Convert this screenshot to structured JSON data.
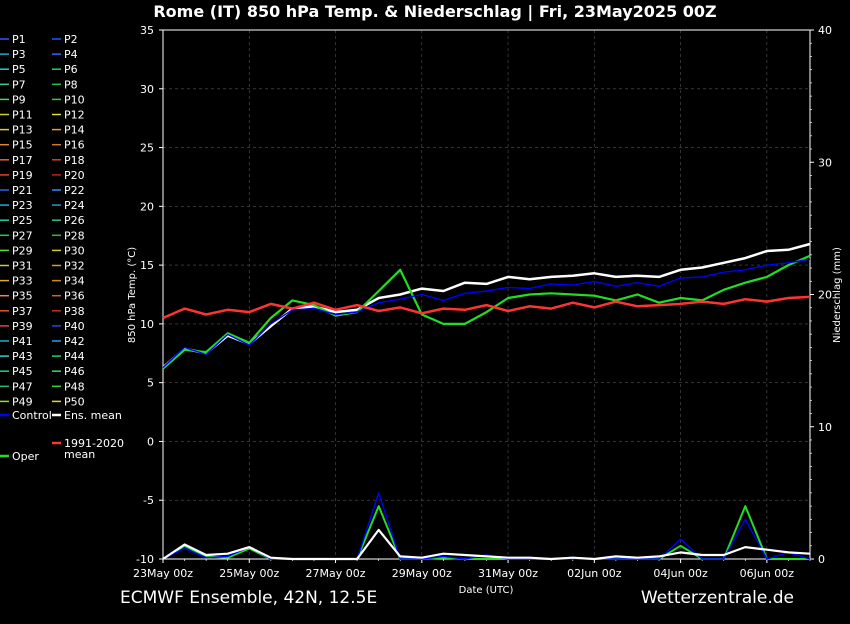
{
  "title": "Rome  (IT)  850 hPa Temp. & Niederschlag | Fri, 23May2025 00Z",
  "footer": {
    "left": "ECMWF Ensemble, 42N, 12.5E",
    "right": "Wetterzentrale.de"
  },
  "colors": {
    "background": "#000000",
    "control": "#0000ff",
    "ens_mean": "#ffffff",
    "climate": "#ff3333",
    "oper": "#22dd22",
    "grid": "#555555"
  },
  "chart_data": {
    "type": "line",
    "title": "Rome  (IT)  850 hPa Temp. & Niederschlag | Fri, 23May2025 00Z",
    "xlabel": "Date (UTC)",
    "ylabel": "850 hPa Temp. (°C)",
    "ylabel_right": "Niederschlag (mm)",
    "ylim": [
      -10,
      35
    ],
    "ylim_right": [
      0,
      40
    ],
    "y_ticks": [
      -10,
      -5,
      0,
      5,
      10,
      15,
      20,
      25,
      30,
      35
    ],
    "y_ticks_right": [
      0,
      10,
      20,
      30,
      40
    ],
    "x_tick_labels": [
      "23May 00z",
      "25May 00z",
      "27May 00z",
      "29May 00z",
      "31May 00z",
      "02Jun 00z",
      "04Jun 00z",
      "06Jun 00z"
    ],
    "x_days": [
      0,
      15
    ],
    "grid": true,
    "legend_placement": "left",
    "legend_members": [
      "P1",
      "P2",
      "P3",
      "P4",
      "P5",
      "P6",
      "P7",
      "P8",
      "P9",
      "P10",
      "P11",
      "P12",
      "P13",
      "P14",
      "P15",
      "P16",
      "P17",
      "P18",
      "P19",
      "P20",
      "P21",
      "P22",
      "P23",
      "P24",
      "P25",
      "P26",
      "P27",
      "P28",
      "P29",
      "P30",
      "P31",
      "P32",
      "P33",
      "P34",
      "P35",
      "P36",
      "P37",
      "P38",
      "P39",
      "P40",
      "P41",
      "P42",
      "P43",
      "P44",
      "P45",
      "P46",
      "P47",
      "P48",
      "P49",
      "P50"
    ],
    "member_colors": [
      "#3355ff",
      "#2255ee",
      "#22aacc",
      "#3366ff",
      "#22cccc",
      "#22cc66",
      "#33cc99",
      "#22bb44",
      "#44dd44",
      "#33cc33",
      "#cccc33",
      "#dddd33",
      "#ddcc33",
      "#ee9933",
      "#dd8833",
      "#cc7733",
      "#dd6633",
      "#cc4422",
      "#dd4433",
      "#bb2222",
      "#2266ee",
      "#3388ff",
      "#22aadd",
      "#2299cc",
      "#22ccaa",
      "#33bb88",
      "#22cc55",
      "#33bb33",
      "#66dd33",
      "#cccc22",
      "#cccc33",
      "#dd9933",
      "#ddaa33",
      "#cc8822",
      "#ee8844",
      "#cc6622",
      "#dd5533",
      "#bb3322",
      "#dd4444",
      "#2244ee",
      "#22aacc",
      "#3399ee",
      "#33cccc",
      "#22cc77",
      "#22cc99",
      "#33dd55",
      "#22bb66",
      "#33cc44",
      "#99dd33",
      "#dddd22"
    ],
    "special_legend": [
      {
        "name": "Control",
        "color": "#0000ff"
      },
      {
        "name": "Ens. mean",
        "color": "#ffffff"
      },
      {
        "name": "1991-2020 mean",
        "color": "#ff3333"
      },
      {
        "name": "Oper",
        "color": "#22dd22"
      }
    ],
    "series": [
      {
        "name": "Ens. mean",
        "x": [
          0,
          0.5,
          1,
          1.5,
          2,
          2.5,
          3,
          3.5,
          4,
          4.5,
          5,
          5.5,
          6,
          6.5,
          7,
          7.5,
          8,
          8.5,
          9,
          9.5,
          10,
          10.5,
          11,
          11.5,
          12,
          12.5,
          13,
          13.5,
          14,
          14.5,
          15
        ],
        "values": [
          6.3,
          7.9,
          7.5,
          9.0,
          8.3,
          9.8,
          11.3,
          11.5,
          11.0,
          11.2,
          12.2,
          12.5,
          13.0,
          12.8,
          13.5,
          13.4,
          14.0,
          13.8,
          14.0,
          14.1,
          14.3,
          14.0,
          14.1,
          14.0,
          14.6,
          14.8,
          15.2,
          15.6,
          16.2,
          16.3,
          16.8
        ]
      },
      {
        "name": "Oper",
        "x": [
          0,
          0.5,
          1,
          1.5,
          2,
          2.5,
          3,
          3.5,
          4,
          4.5,
          5,
          5.5,
          6,
          6.5,
          7,
          7.5,
          8,
          8.5,
          9,
          9.5,
          10,
          10.5,
          11,
          11.5,
          12,
          12.5,
          13,
          13.5,
          14,
          14.5,
          15
        ],
        "values": [
          6.2,
          7.8,
          7.6,
          9.2,
          8.4,
          10.5,
          12.0,
          11.6,
          10.7,
          11.0,
          12.8,
          14.6,
          10.8,
          10.0,
          10.0,
          11.0,
          12.2,
          12.5,
          12.6,
          12.5,
          12.4,
          12.0,
          12.5,
          11.8,
          12.2,
          12.0,
          12.9,
          13.5,
          14.0,
          15.0,
          15.8
        ]
      },
      {
        "name": "Control",
        "x": [
          0,
          0.5,
          1,
          1.5,
          2,
          2.5,
          3,
          3.5,
          4,
          4.5,
          5,
          5.5,
          6,
          6.5,
          7,
          7.5,
          8,
          8.5,
          9,
          9.5,
          10,
          10.5,
          11,
          11.5,
          12,
          12.5,
          13,
          13.5,
          14,
          14.5,
          15
        ],
        "values": [
          6.3,
          8.0,
          7.4,
          9.1,
          8.2,
          10.0,
          11.2,
          11.3,
          10.8,
          11.0,
          11.8,
          12.1,
          12.5,
          12.0,
          12.6,
          12.8,
          13.1,
          13.0,
          13.4,
          13.3,
          13.6,
          13.2,
          13.5,
          13.2,
          13.9,
          14.0,
          14.4,
          14.6,
          15.0,
          15.2,
          15.5
        ]
      },
      {
        "name": "1991-2020 mean",
        "x": [
          0,
          0.5,
          1,
          1.5,
          2,
          2.5,
          3,
          3.5,
          4,
          4.5,
          5,
          5.5,
          6,
          6.5,
          7,
          7.5,
          8,
          8.5,
          9,
          9.5,
          10,
          10.5,
          11,
          11.5,
          12,
          12.5,
          13,
          13.5,
          14,
          14.5,
          15
        ],
        "values": [
          10.5,
          11.3,
          10.8,
          11.2,
          11.0,
          11.7,
          11.3,
          11.8,
          11.2,
          11.6,
          11.1,
          11.4,
          10.9,
          11.3,
          11.2,
          11.6,
          11.1,
          11.5,
          11.3,
          11.8,
          11.4,
          11.9,
          11.5,
          11.6,
          11.7,
          11.9,
          11.7,
          12.1,
          11.9,
          12.2,
          12.3
        ]
      },
      {
        "name": "Oper precipitation (mm)",
        "x": [
          0,
          0.5,
          1,
          1.5,
          2,
          2.5,
          3,
          3.5,
          4,
          4.5,
          5,
          5.5,
          6,
          6.5,
          7,
          7.5,
          8,
          8.5,
          9,
          9.5,
          10,
          10.5,
          11,
          11.5,
          12,
          12.5,
          13,
          13.5,
          14,
          14.5,
          15
        ],
        "values": [
          0,
          1,
          0.2,
          0.1,
          0.8,
          0,
          0,
          0,
          0,
          0,
          4,
          0,
          0,
          0.1,
          0,
          0,
          0,
          0,
          0,
          0.1,
          0,
          0,
          0,
          0,
          1,
          0,
          0,
          4,
          0,
          0,
          0
        ]
      },
      {
        "name": "Control precipitation (mm)",
        "x": [
          0,
          0.5,
          1,
          1.5,
          2,
          2.5,
          3,
          3.5,
          4,
          4.5,
          5,
          5.5,
          6,
          6.5,
          7,
          7.5,
          8,
          8.5,
          9,
          9.5,
          10,
          10.5,
          11,
          11.5,
          12,
          12.5,
          13,
          13.5,
          14,
          14.5,
          15
        ],
        "values": [
          0,
          0.8,
          0.1,
          0.2,
          0.9,
          0,
          0,
          0,
          0,
          0,
          5,
          0,
          0,
          0.2,
          0,
          0.3,
          0,
          0,
          0,
          0,
          0,
          0,
          0,
          0,
          1.5,
          0,
          0,
          3,
          0,
          0.5,
          0
        ]
      },
      {
        "name": "Ens. mean precipitation (mm)",
        "x": [
          0,
          0.5,
          1,
          1.5,
          2,
          2.5,
          3,
          3.5,
          4,
          4.5,
          5,
          5.5,
          6,
          6.5,
          7,
          7.5,
          8,
          8.5,
          9,
          9.5,
          10,
          10.5,
          11,
          11.5,
          12,
          12.5,
          13,
          13.5,
          14,
          14.5,
          15
        ],
        "values": [
          0,
          1.1,
          0.3,
          0.4,
          0.9,
          0.1,
          0,
          0,
          0,
          0,
          2.2,
          0.2,
          0.1,
          0.4,
          0.3,
          0.2,
          0.1,
          0.1,
          0,
          0.1,
          0,
          0.2,
          0.1,
          0.2,
          0.5,
          0.3,
          0.3,
          0.9,
          0.7,
          0.5,
          0.4
        ]
      }
    ]
  }
}
